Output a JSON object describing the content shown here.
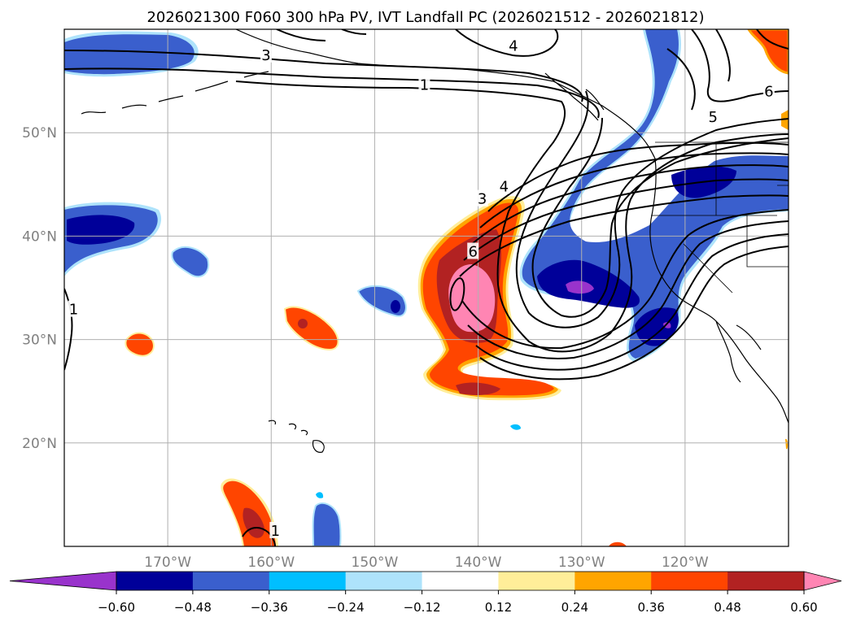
{
  "title": "2026021300 F060 300 hPa PV, IVT Landfall PC (2026021512 - 2026021812)",
  "map": {
    "lon_range": [
      -180,
      -110
    ],
    "lat_range": [
      10,
      60
    ],
    "lon_ticks": [
      {
        "lon": -170,
        "label": "170°W"
      },
      {
        "lon": -160,
        "label": "160°W"
      },
      {
        "lon": -150,
        "label": "150°W"
      },
      {
        "lon": -140,
        "label": "140°W"
      },
      {
        "lon": -130,
        "label": "130°W"
      },
      {
        "lon": -120,
        "label": "120°W"
      }
    ],
    "lat_ticks": [
      {
        "lat": 50,
        "label": "50°N"
      },
      {
        "lat": 40,
        "label": "40°N"
      },
      {
        "lat": 30,
        "label": "30°N"
      },
      {
        "lat": 20,
        "label": "20°N"
      }
    ],
    "grid": true
  },
  "colorbar": {
    "colors": [
      "#9933cc",
      "#000099",
      "#3a5fcd",
      "#00bfff",
      "#aee3fb",
      "#ffffff",
      "#ffee99",
      "#ffa500",
      "#ff4500",
      "#b22222",
      "#ff85b3"
    ],
    "labels": [
      "−0.60",
      "−0.48",
      "−0.36",
      "−0.24",
      "−0.12",
      "0.12",
      "0.24",
      "0.36",
      "0.48",
      "0.60"
    ],
    "extend": "both"
  },
  "contour_labels": [
    {
      "text": "1",
      "lon": -145.2,
      "lat": 54.6
    },
    {
      "text": "3",
      "lon": -160.5,
      "lat": 57.5
    },
    {
      "text": "4",
      "lon": -136.6,
      "lat": 58.4
    },
    {
      "text": "6",
      "lon": -111.9,
      "lat": 54.0
    },
    {
      "text": "5",
      "lon": -117.3,
      "lat": 51.5
    },
    {
      "text": "4",
      "lon": -137.5,
      "lat": 44.8
    },
    {
      "text": "3",
      "lon": -139.6,
      "lat": 43.6
    },
    {
      "text": "6",
      "lon": -140.5,
      "lat": 38.5
    },
    {
      "text": "1",
      "lon": -179.1,
      "lat": 32.9
    },
    {
      "text": "1",
      "lon": -159.6,
      "lat": 11.5
    }
  ]
}
